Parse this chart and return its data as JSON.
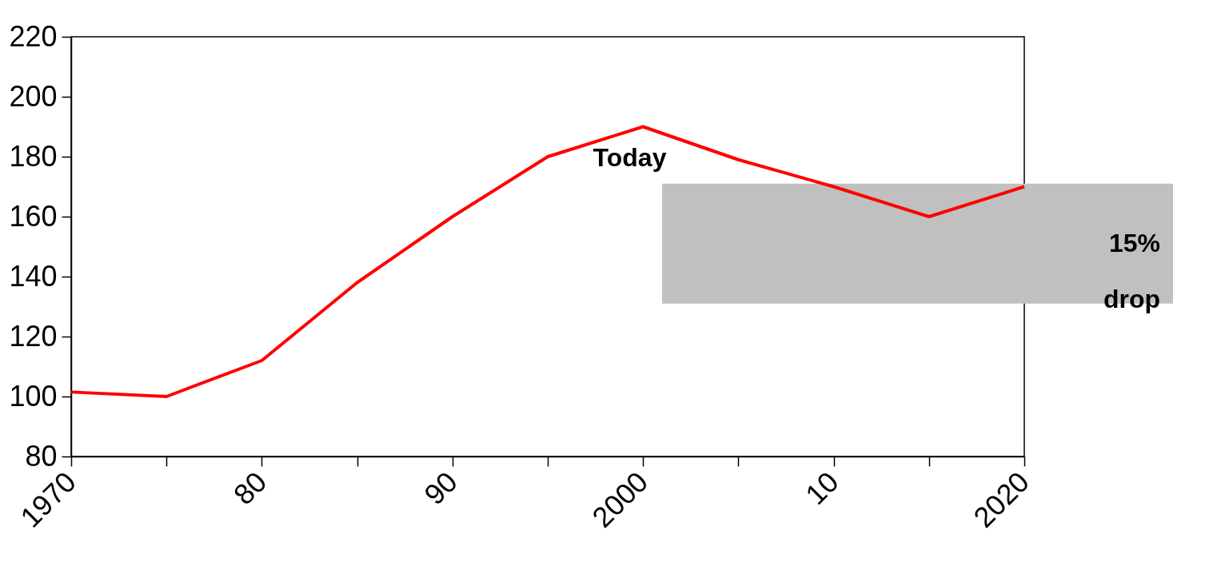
{
  "chart_data": {
    "type": "line",
    "x": [
      1970,
      1975,
      1980,
      1985,
      1990,
      1995,
      2000,
      2005,
      2010,
      2015,
      2020
    ],
    "series": [
      {
        "color": "#ff0000",
        "values": [
          101.5,
          100,
          112,
          138,
          160,
          180,
          190,
          179,
          170,
          160,
          170
        ]
      }
    ],
    "xlim": [
      1970,
      2020
    ],
    "xticks": [
      1970,
      {
        "value": 1975,
        "label": null
      },
      {
        "value": 1980,
        "label": "80"
      },
      {
        "value": 1985,
        "label": null
      },
      {
        "value": 1990,
        "label": "90"
      },
      {
        "value": 1995,
        "label": null
      },
      2000,
      {
        "value": 2005,
        "label": null
      },
      {
        "value": 2010,
        "label": "10"
      },
      {
        "value": 2015,
        "label": null
      },
      2020
    ],
    "ylim": [
      80,
      220
    ],
    "yticks": [
      80,
      100,
      120,
      140,
      160,
      180,
      200,
      220
    ],
    "annotations": [
      "Today"
    ],
    "bands": [
      {
        "axis": "y",
        "from": 131,
        "to": 171,
        "label": "15% drop",
        "color": "#c0c0c0"
      }
    ],
    "grid": false,
    "line_style": "solid",
    "marker": "none"
  }
}
